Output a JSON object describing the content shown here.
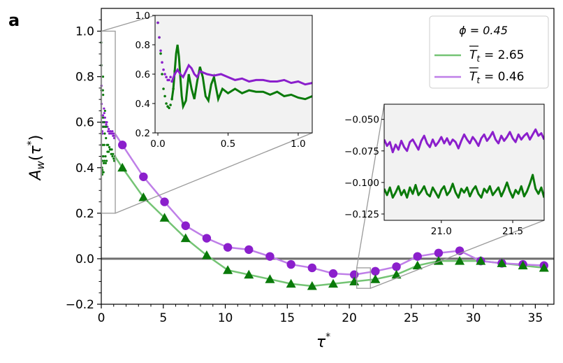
{
  "panel_letter": "a",
  "legend": {
    "title": "ϕ = 0.45",
    "entries": [
      {
        "series": "T_t = 2.65",
        "symbol": "T",
        "subscript": "t",
        "text": "= 2.65",
        "color": "#2e8b2e"
      },
      {
        "series": "T_t = 0.46",
        "symbol": "T",
        "subscript": "t",
        "text": "= 0.46",
        "color": "#a64ddb"
      }
    ]
  },
  "colors": {
    "green_dark": "#0a7a0a",
    "green_light": "#74c474",
    "purple_dark": "#8b1fcc",
    "purple_light": "#bf7fe8",
    "zero_line": "#6e6e6e",
    "zoom_box": "#9a9a9a",
    "inset_bg": "#f2f2f2"
  },
  "chart_data": [
    {
      "id": "main",
      "type": "line",
      "title": "",
      "xlabel": "τ*",
      "ylabel": "A_w(τ*)",
      "xlim": [
        0,
        36.5
      ],
      "ylim": [
        -0.2,
        1.1
      ],
      "xticks": [
        0,
        5,
        10,
        15,
        20,
        25,
        30,
        35
      ],
      "yticks": [
        -0.2,
        0.0,
        0.2,
        0.4,
        0.6,
        0.8,
        1.0
      ],
      "xtick_labels": [
        "0",
        "5",
        "10",
        "15",
        "20",
        "25",
        "30",
        "35"
      ],
      "ytick_labels": [
        "−0.2",
        "0.0",
        "0.2",
        "0.4",
        "0.6",
        "0.8",
        "1.0"
      ],
      "hline": 0.0,
      "series": [
        {
          "name": "T_t = 2.65",
          "marker": "triangle",
          "x": [
            1.7,
            3.4,
            5.1,
            6.8,
            8.5,
            10.2,
            11.9,
            13.6,
            15.3,
            17.0,
            18.7,
            20.4,
            22.1,
            23.8,
            25.5,
            27.2,
            28.9,
            30.6,
            32.3,
            34.0,
            35.7
          ],
          "y": [
            0.4,
            0.27,
            0.18,
            0.09,
            0.015,
            -0.05,
            -0.07,
            -0.09,
            -0.11,
            -0.12,
            -0.11,
            -0.1,
            -0.09,
            -0.07,
            -0.03,
            -0.01,
            -0.01,
            -0.01,
            -0.02,
            -0.03,
            -0.04
          ]
        },
        {
          "name": "T_t = 0.46",
          "marker": "circle",
          "x": [
            1.7,
            3.4,
            5.1,
            6.8,
            8.5,
            10.2,
            11.9,
            13.6,
            15.3,
            17.0,
            18.7,
            20.4,
            22.1,
            23.8,
            25.5,
            27.2,
            28.9,
            30.6,
            32.3,
            34.0,
            35.7
          ],
          "y": [
            0.5,
            0.36,
            0.25,
            0.145,
            0.09,
            0.05,
            0.04,
            0.01,
            -0.025,
            -0.04,
            -0.065,
            -0.07,
            -0.055,
            -0.035,
            0.01,
            0.025,
            0.035,
            -0.01,
            -0.02,
            -0.025,
            -0.03
          ]
        }
      ],
      "zoom_windows": [
        {
          "target": "inset_early",
          "xlim": [
            0,
            1.1
          ],
          "ylim": [
            0.2,
            1.0
          ]
        },
        {
          "target": "inset_late",
          "xlim": [
            20.6,
            21.7
          ],
          "ylim": [
            -0.13,
            -0.04
          ]
        }
      ]
    },
    {
      "id": "inset_early",
      "type": "line",
      "xlim": [
        -0.02,
        1.1
      ],
      "ylim": [
        0.2,
        1.0
      ],
      "xticks": [
        0.0,
        0.5,
        1.0
      ],
      "yticks": [
        0.2,
        0.4,
        0.6,
        0.8,
        1.0
      ],
      "xtick_labels": [
        "0.0",
        "0.5",
        "1.0"
      ],
      "ytick_labels": [
        "0.2",
        "0.4",
        "0.6",
        "0.8",
        "1.0"
      ],
      "series": [
        {
          "name": "T_t = 2.65",
          "x": [
            0.0,
            0.01,
            0.02,
            0.03,
            0.04,
            0.05,
            0.06,
            0.07,
            0.08,
            0.09,
            0.1,
            0.11,
            0.12,
            0.13,
            0.14,
            0.15,
            0.16,
            0.17,
            0.18,
            0.2,
            0.22,
            0.24,
            0.26,
            0.28,
            0.3,
            0.32,
            0.34,
            0.36,
            0.38,
            0.4,
            0.43,
            0.46,
            0.5,
            0.55,
            0.6,
            0.65,
            0.7,
            0.75,
            0.8,
            0.85,
            0.9,
            0.95,
            1.0,
            1.05,
            1.1
          ],
          "y": [
            0.95,
            0.85,
            0.74,
            0.6,
            0.5,
            0.45,
            0.4,
            0.38,
            0.37,
            0.39,
            0.43,
            0.5,
            0.62,
            0.74,
            0.8,
            0.72,
            0.58,
            0.45,
            0.38,
            0.42,
            0.6,
            0.5,
            0.43,
            0.55,
            0.65,
            0.58,
            0.45,
            0.42,
            0.53,
            0.58,
            0.43,
            0.5,
            0.47,
            0.5,
            0.47,
            0.49,
            0.48,
            0.48,
            0.46,
            0.48,
            0.45,
            0.46,
            0.44,
            0.43,
            0.45
          ]
        },
        {
          "name": "T_t = 0.46",
          "x": [
            0.0,
            0.01,
            0.02,
            0.03,
            0.04,
            0.05,
            0.06,
            0.07,
            0.08,
            0.09,
            0.1,
            0.12,
            0.14,
            0.16,
            0.18,
            0.2,
            0.22,
            0.24,
            0.26,
            0.28,
            0.3,
            0.35,
            0.4,
            0.45,
            0.5,
            0.55,
            0.6,
            0.65,
            0.7,
            0.75,
            0.8,
            0.85,
            0.9,
            0.95,
            1.0,
            1.05,
            1.1
          ],
          "y": [
            0.95,
            0.85,
            0.76,
            0.68,
            0.63,
            0.6,
            0.58,
            0.56,
            0.56,
            0.58,
            0.55,
            0.6,
            0.63,
            0.6,
            0.58,
            0.62,
            0.66,
            0.64,
            0.6,
            0.58,
            0.62,
            0.6,
            0.59,
            0.6,
            0.58,
            0.56,
            0.57,
            0.55,
            0.56,
            0.56,
            0.55,
            0.55,
            0.56,
            0.54,
            0.55,
            0.53,
            0.54
          ]
        }
      ]
    },
    {
      "id": "inset_late",
      "type": "line",
      "xlim": [
        20.6,
        21.72
      ],
      "ylim": [
        -0.13,
        -0.038
      ],
      "xticks": [
        21.0,
        21.5
      ],
      "yticks": [
        -0.125,
        -0.1,
        -0.075,
        -0.05
      ],
      "xtick_labels": [
        "21.0",
        "21.5"
      ],
      "ytick_labels": [
        "−0.125",
        "−0.100",
        "−0.075",
        "−0.050"
      ],
      "series": [
        {
          "name": "T_t = 2.65",
          "x": [
            20.6,
            20.62,
            20.64,
            20.66,
            20.68,
            20.7,
            20.72,
            20.74,
            20.76,
            20.78,
            20.8,
            20.82,
            20.84,
            20.86,
            20.88,
            20.9,
            20.92,
            20.94,
            20.96,
            20.98,
            21.0,
            21.02,
            21.04,
            21.06,
            21.08,
            21.1,
            21.12,
            21.14,
            21.16,
            21.18,
            21.2,
            21.22,
            21.24,
            21.26,
            21.28,
            21.3,
            21.32,
            21.34,
            21.36,
            21.38,
            21.4,
            21.42,
            21.44,
            21.46,
            21.48,
            21.5,
            21.52,
            21.54,
            21.56,
            21.58,
            21.6,
            21.62,
            21.64,
            21.66,
            21.68,
            21.7,
            21.72
          ],
          "y": [
            -0.105,
            -0.11,
            -0.104,
            -0.112,
            -0.108,
            -0.103,
            -0.11,
            -0.106,
            -0.112,
            -0.104,
            -0.109,
            -0.102,
            -0.11,
            -0.107,
            -0.103,
            -0.109,
            -0.111,
            -0.104,
            -0.108,
            -0.112,
            -0.106,
            -0.103,
            -0.11,
            -0.107,
            -0.101,
            -0.108,
            -0.112,
            -0.105,
            -0.108,
            -0.104,
            -0.111,
            -0.106,
            -0.103,
            -0.109,
            -0.112,
            -0.105,
            -0.108,
            -0.103,
            -0.11,
            -0.107,
            -0.104,
            -0.111,
            -0.106,
            -0.1,
            -0.107,
            -0.112,
            -0.106,
            -0.109,
            -0.103,
            -0.111,
            -0.107,
            -0.101,
            -0.094,
            -0.105,
            -0.109,
            -0.104,
            -0.112
          ]
        },
        {
          "name": "T_t = 0.46",
          "x": [
            20.6,
            20.62,
            20.64,
            20.66,
            20.68,
            20.7,
            20.72,
            20.74,
            20.76,
            20.78,
            20.8,
            20.82,
            20.84,
            20.86,
            20.88,
            20.9,
            20.92,
            20.94,
            20.96,
            20.98,
            21.0,
            21.02,
            21.04,
            21.06,
            21.08,
            21.1,
            21.12,
            21.14,
            21.16,
            21.18,
            21.2,
            21.22,
            21.24,
            21.26,
            21.28,
            21.3,
            21.32,
            21.34,
            21.36,
            21.38,
            21.4,
            21.42,
            21.44,
            21.46,
            21.48,
            21.5,
            21.52,
            21.54,
            21.56,
            21.58,
            21.6,
            21.62,
            21.64,
            21.66,
            21.68,
            21.7,
            21.72
          ],
          "y": [
            -0.066,
            -0.071,
            -0.068,
            -0.076,
            -0.07,
            -0.074,
            -0.067,
            -0.072,
            -0.075,
            -0.068,
            -0.066,
            -0.07,
            -0.074,
            -0.067,
            -0.063,
            -0.069,
            -0.072,
            -0.066,
            -0.071,
            -0.068,
            -0.064,
            -0.069,
            -0.065,
            -0.07,
            -0.066,
            -0.068,
            -0.073,
            -0.067,
            -0.062,
            -0.066,
            -0.069,
            -0.064,
            -0.067,
            -0.071,
            -0.065,
            -0.062,
            -0.067,
            -0.064,
            -0.06,
            -0.066,
            -0.069,
            -0.063,
            -0.067,
            -0.064,
            -0.06,
            -0.065,
            -0.068,
            -0.062,
            -0.066,
            -0.063,
            -0.061,
            -0.066,
            -0.062,
            -0.058,
            -0.063,
            -0.061,
            -0.066
          ]
        }
      ]
    }
  ]
}
